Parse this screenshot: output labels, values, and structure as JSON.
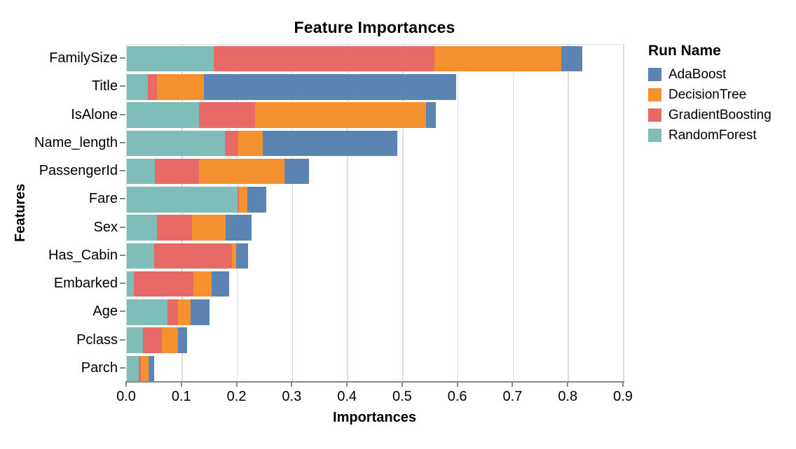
{
  "chart": {
    "title": "Feature Importances",
    "x_axis": {
      "title": "Importances",
      "tick_labels": [
        "0.0",
        "0.1",
        "0.2",
        "0.3",
        "0.4",
        "0.5",
        "0.6",
        "0.7",
        "0.8",
        "0.9"
      ]
    },
    "y_axis": {
      "title": "Features"
    },
    "legend": {
      "title": "Run Name",
      "entries": [
        {
          "label": "AdaBoost",
          "color": "#5b84b2"
        },
        {
          "label": "DecisionTree",
          "color": "#f5912f"
        },
        {
          "label": "GradientBoosting",
          "color": "#e86a66"
        },
        {
          "label": "RandomForest",
          "color": "#7fbdb8"
        }
      ]
    },
    "colors": {
      "grid": "#dddddd",
      "axis_line": "#888888",
      "text": "#000000"
    }
  },
  "chart_data": {
    "type": "bar",
    "orientation": "horizontal",
    "stacked": true,
    "title": "Feature Importances",
    "xlabel": "Importances",
    "ylabel": "Features",
    "xlim": [
      0,
      0.9
    ],
    "xticks": [
      0.0,
      0.1,
      0.2,
      0.3,
      0.4,
      0.5,
      0.6,
      0.7,
      0.8,
      0.9
    ],
    "grid": true,
    "legend_position": "right",
    "legend_title": "Run Name",
    "categories": [
      "FamilySize",
      "Title",
      "IsAlone",
      "Name_length",
      "PassengerId",
      "Fare",
      "Sex",
      "Has_Cabin",
      "Embarked",
      "Age",
      "Pclass",
      "Parch"
    ],
    "stack_order_note": "segments drawn left-to-right: RandomForest, GradientBoosting, DecisionTree, AdaBoost",
    "series": [
      {
        "name": "RandomForest",
        "color": "#7fbdb8",
        "values": [
          0.157,
          0.038,
          0.131,
          0.178,
          0.051,
          0.201,
          0.055,
          0.05,
          0.013,
          0.073,
          0.029,
          0.022
        ]
      },
      {
        "name": "GradientBoosting",
        "color": "#e86a66",
        "values": [
          0.4,
          0.017,
          0.101,
          0.024,
          0.08,
          0.002,
          0.063,
          0.14,
          0.108,
          0.02,
          0.034,
          0.003
        ]
      },
      {
        "name": "DecisionTree",
        "color": "#f5912f",
        "values": [
          0.23,
          0.085,
          0.31,
          0.044,
          0.155,
          0.015,
          0.061,
          0.008,
          0.033,
          0.023,
          0.03,
          0.014
        ]
      },
      {
        "name": "AdaBoost",
        "color": "#5b84b2",
        "values": [
          0.038,
          0.457,
          0.018,
          0.244,
          0.044,
          0.035,
          0.047,
          0.022,
          0.031,
          0.034,
          0.016,
          0.01
        ]
      }
    ],
    "totals": [
      0.825,
      0.597,
      0.56,
      0.49,
      0.33,
      0.253,
      0.226,
      0.22,
      0.185,
      0.15,
      0.109,
      0.049
    ]
  }
}
